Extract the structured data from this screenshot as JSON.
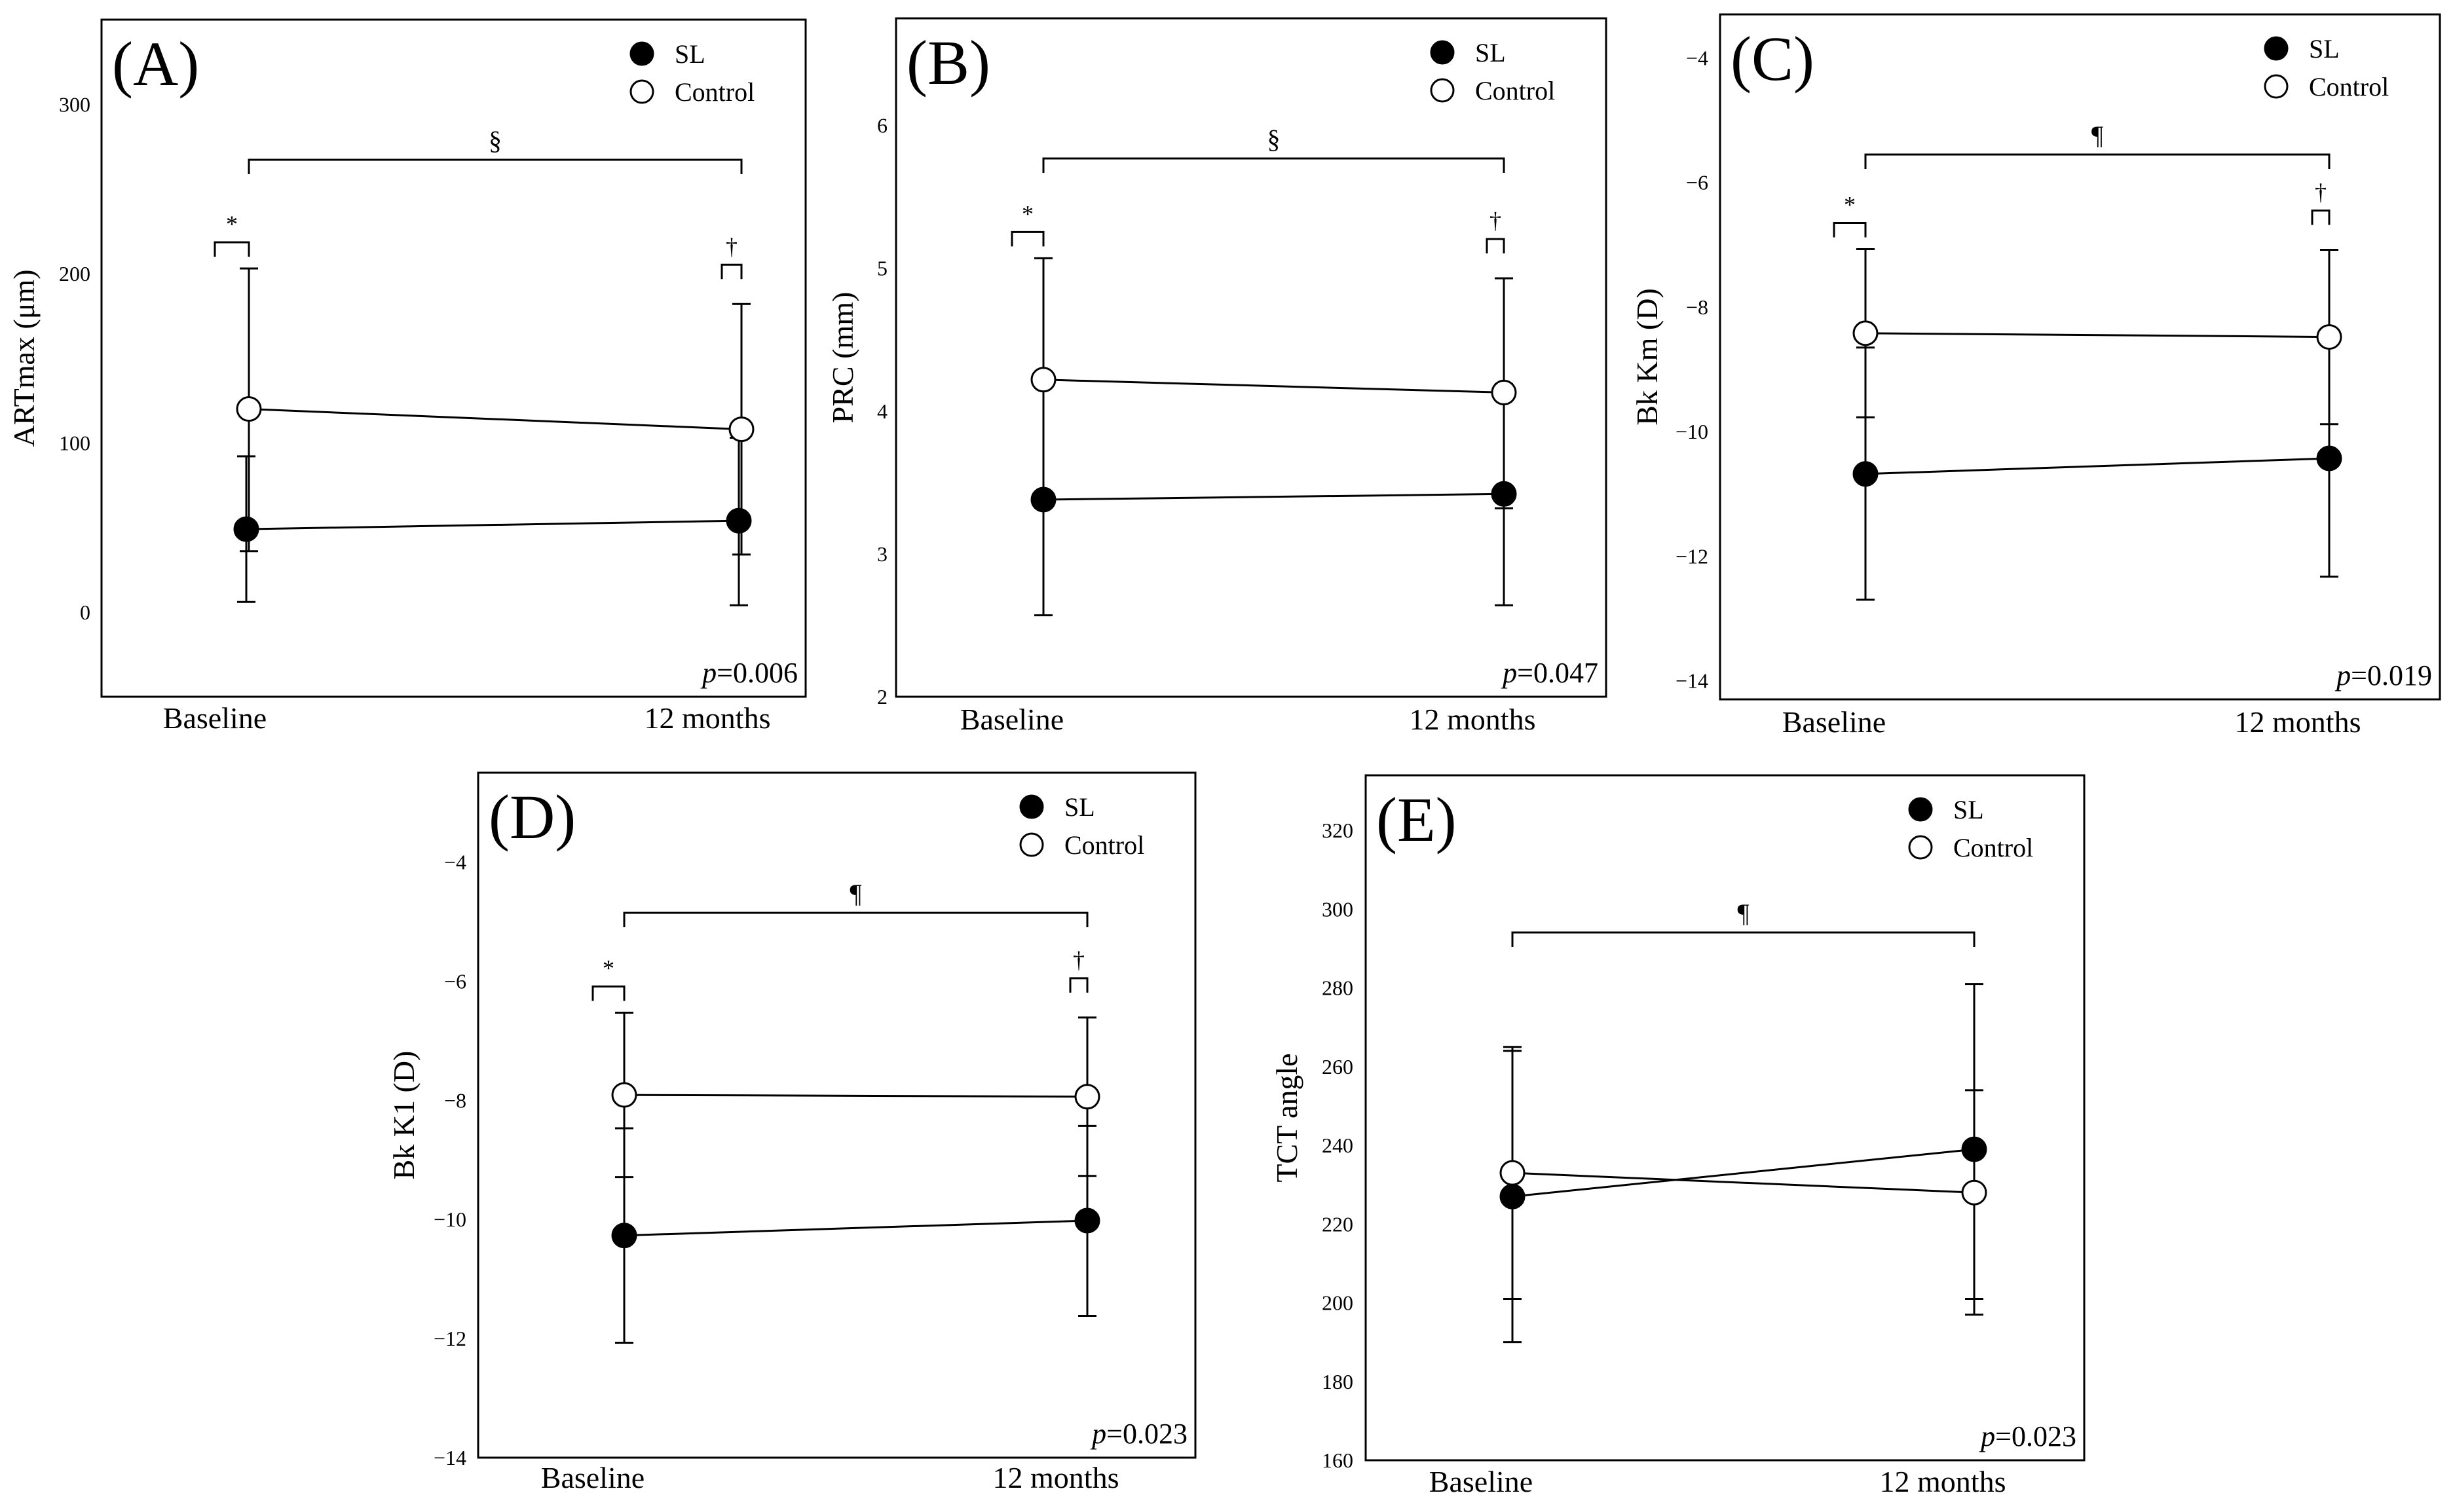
{
  "chart_data": [
    {
      "id": "A",
      "type": "line",
      "panel_label": "(A)",
      "ylabel": "ARTmax (μm)",
      "categories": [
        "Baseline",
        "12 months"
      ],
      "ylim": [
        -50,
        350
      ],
      "yticks": [
        0,
        100,
        200,
        300
      ],
      "series": [
        {
          "name": "SL",
          "marker": "filled",
          "values": [
            49,
            54
          ],
          "err_low": [
            6,
            4
          ],
          "err_high": [
            92,
            103
          ]
        },
        {
          "name": "Control",
          "marker": "open",
          "values": [
            120,
            108
          ],
          "err_low": [
            36,
            34
          ],
          "err_high": [
            203,
            182
          ]
        }
      ],
      "brackets": [
        {
          "between": "Baseline SL vs Baseline Control",
          "symbol": "*"
        },
        {
          "between": "12 months SL vs 12 months Control",
          "symbol": "†"
        },
        {
          "between": "Baseline Control vs 12 months Control",
          "symbol": "§"
        }
      ],
      "p_prefix": "p",
      "p_value": "=0.006",
      "legend": [
        "SL",
        "Control"
      ],
      "legend_position": "top-right"
    },
    {
      "id": "B",
      "type": "line",
      "panel_label": "(B)",
      "ylabel": "PRC (mm)",
      "categories": [
        "Baseline",
        "12 months"
      ],
      "ylim": [
        2,
        6.75
      ],
      "yticks": [
        2,
        3,
        4,
        5,
        6
      ],
      "series": [
        {
          "name": "SL",
          "marker": "filled",
          "values": [
            3.38,
            3.42
          ],
          "err_low": [
            2.57,
            2.64
          ],
          "err_high": [
            4.18,
            4.19
          ]
        },
        {
          "name": "Control",
          "marker": "open",
          "values": [
            4.22,
            4.13
          ],
          "err_low": [
            3.38,
            3.32
          ],
          "err_high": [
            5.07,
            4.93
          ]
        }
      ],
      "brackets": [
        {
          "between": "Baseline SL vs Baseline Control",
          "symbol": "*"
        },
        {
          "between": "12 months SL vs 12 months Control",
          "symbol": "†"
        },
        {
          "between": "Baseline Control vs 12 months Control",
          "symbol": "§"
        }
      ],
      "p_prefix": "p",
      "p_value": "=0.047",
      "legend": [
        "SL",
        "Control"
      ],
      "legend_position": "top-right"
    },
    {
      "id": "C",
      "type": "line",
      "panel_label": "(C)",
      "ylabel": "Bk Km (D)",
      "categories": [
        "Baseline",
        "12 months"
      ],
      "ylim": [
        -14.3,
        -3.3
      ],
      "yticks": [
        -4,
        -6,
        -8,
        -10,
        -12,
        -14
      ],
      "series": [
        {
          "name": "SL",
          "marker": "filled",
          "values": [
            -10.68,
            -10.43
          ],
          "err_low": [
            -12.7,
            -12.33
          ],
          "err_high": [
            -8.65,
            -8.59
          ]
        },
        {
          "name": "Control",
          "marker": "open",
          "values": [
            -8.42,
            -8.48
          ],
          "err_low": [
            -9.77,
            -9.88
          ],
          "err_high": [
            -7.07,
            -7.08
          ]
        }
      ],
      "brackets": [
        {
          "between": "Baseline SL vs Baseline Control",
          "symbol": "*"
        },
        {
          "between": "12 months SL vs 12 months Control",
          "symbol": "†"
        },
        {
          "between": "Baseline Control vs 12 months Control",
          "symbol": "¶"
        }
      ],
      "p_prefix": "p",
      "p_value": "=0.019",
      "legend": [
        "SL",
        "Control"
      ],
      "legend_position": "top-right"
    },
    {
      "id": "D",
      "type": "line",
      "panel_label": "(D)",
      "ylabel": "Bk K1 (D)",
      "categories": [
        "Baseline",
        "12 months"
      ],
      "ylim": [
        -14,
        -2.5
      ],
      "yticks": [
        -4,
        -6,
        -8,
        -10,
        -12,
        -14
      ],
      "series": [
        {
          "name": "SL",
          "marker": "filled",
          "values": [
            -10.27,
            -10.02
          ],
          "err_low": [
            -12.07,
            -11.62
          ],
          "err_high": [
            -8.47,
            -8.43
          ]
        },
        {
          "name": "Control",
          "marker": "open",
          "values": [
            -7.91,
            -7.94
          ],
          "err_low": [
            -9.29,
            -9.27
          ],
          "err_high": [
            -6.53,
            -6.61
          ]
        }
      ],
      "brackets": [
        {
          "between": "Baseline SL vs Baseline Control",
          "symbol": "*"
        },
        {
          "between": "12 months SL vs 12 months Control",
          "symbol": "†"
        },
        {
          "between": "Baseline Control vs 12 months Control",
          "symbol": "¶"
        }
      ],
      "p_prefix": "p",
      "p_value": "=0.023",
      "legend": [
        "SL",
        "Control"
      ],
      "legend_position": "top-right"
    },
    {
      "id": "E",
      "type": "line",
      "panel_label": "(E)",
      "ylabel": "TCT angle",
      "categories": [
        "Baseline",
        "12 months"
      ],
      "ylim": [
        160,
        334
      ],
      "yticks": [
        160,
        180,
        200,
        220,
        240,
        260,
        280,
        300,
        320
      ],
      "series": [
        {
          "name": "SL",
          "marker": "filled",
          "values": [
            227,
            239
          ],
          "err_low": [
            190,
            197
          ],
          "err_high": [
            264,
            281
          ]
        },
        {
          "name": "Control",
          "marker": "open",
          "values": [
            233,
            228
          ],
          "err_low": [
            201,
            201
          ],
          "err_high": [
            265,
            254
          ]
        }
      ],
      "brackets": [
        {
          "between": "Baseline SL vs 12 months SL",
          "symbol": "¶"
        }
      ],
      "p_prefix": "p",
      "p_value": "=0.023",
      "legend": [
        "SL",
        "Control"
      ],
      "legend_position": "top-right"
    }
  ]
}
